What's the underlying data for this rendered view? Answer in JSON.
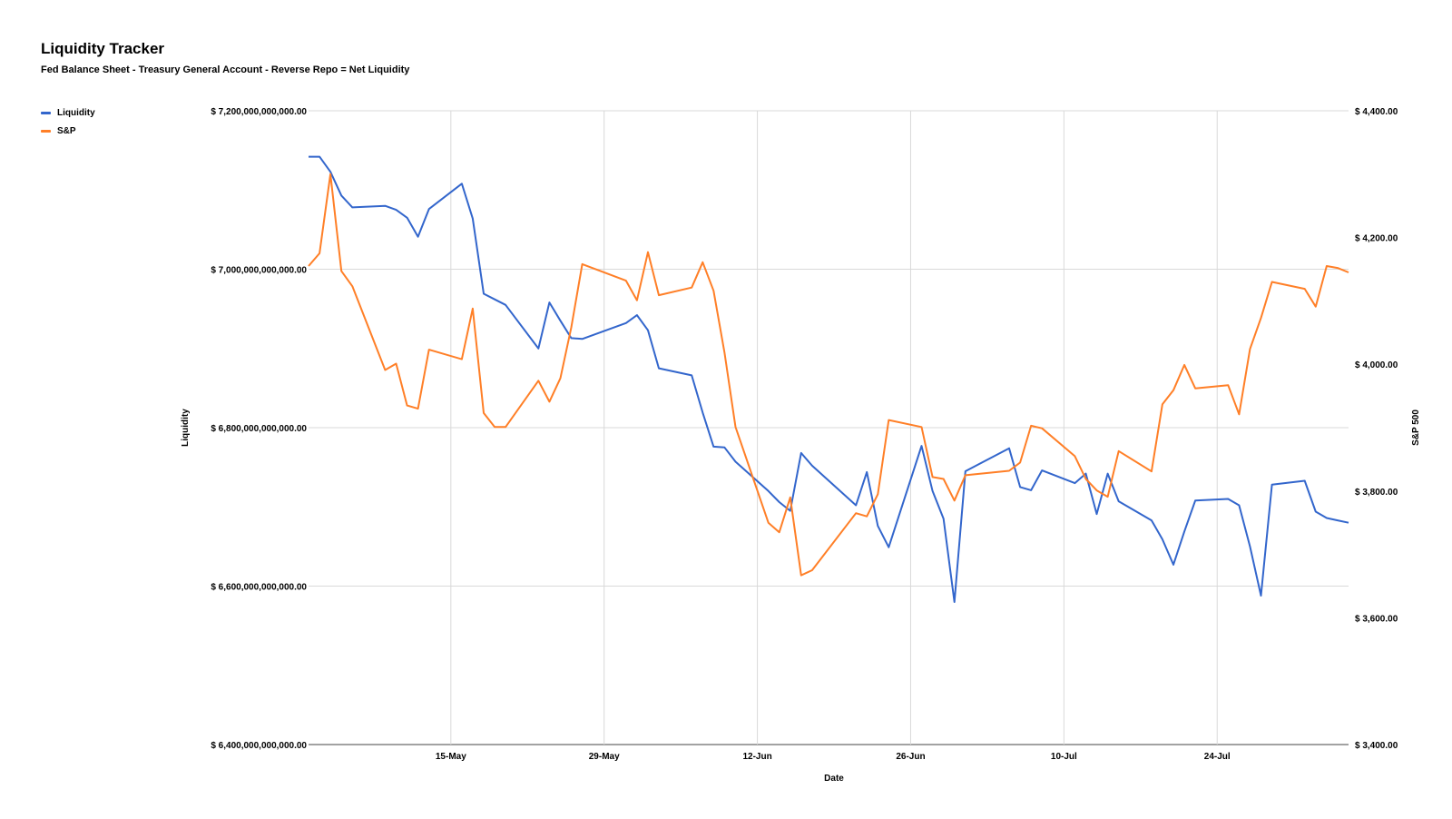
{
  "chart_data": {
    "type": "line",
    "title": "Liquidity Tracker",
    "subtitle": "Fed Balance Sheet - Treasury General Account - Reverse Repo = Net Liquidity",
    "xlabel": "Date",
    "ylabel": "Liquidity",
    "y2label": "S&P 500",
    "x_ticks": [
      "15-May",
      "29-May",
      "12-Jun",
      "26-Jun",
      "10-Jul",
      "24-Jul"
    ],
    "y_ticks": [
      "$ 6,400,000,000,000.00",
      "$ 6,600,000,000,000.00",
      "$ 6,800,000,000,000.00",
      "$ 7,000,000,000,000.00",
      "$ 7,200,000,000,000.00"
    ],
    "y2_ticks": [
      "$ 3,400.00",
      "$ 3,600.00",
      "$ 3,800.00",
      "$ 4,000.00",
      "$ 4,200.00",
      "$ 4,400.00"
    ],
    "ylim": [
      6400000000000,
      7200000000000
    ],
    "y2lim": [
      3400,
      4400
    ],
    "grid": true,
    "legend_position": "top-left",
    "series": [
      {
        "name": "Liquidity",
        "color": "#3366cc",
        "axis": "left",
        "x": [
          "2022-05-02",
          "2022-05-03",
          "2022-05-04",
          "2022-05-05",
          "2022-05-06",
          "2022-05-09",
          "2022-05-10",
          "2022-05-11",
          "2022-05-12",
          "2022-05-13",
          "2022-05-16",
          "2022-05-17",
          "2022-05-18",
          "2022-05-19",
          "2022-05-20",
          "2022-05-23",
          "2022-05-24",
          "2022-05-25",
          "2022-05-26",
          "2022-05-27",
          "2022-05-31",
          "2022-06-01",
          "2022-06-02",
          "2022-06-03",
          "2022-06-06",
          "2022-06-07",
          "2022-06-08",
          "2022-06-09",
          "2022-06-10",
          "2022-06-13",
          "2022-06-14",
          "2022-06-15",
          "2022-06-16",
          "2022-06-17",
          "2022-06-21",
          "2022-06-22",
          "2022-06-23",
          "2022-06-24",
          "2022-06-27",
          "2022-06-28",
          "2022-06-29",
          "2022-06-30",
          "2022-07-01",
          "2022-07-05",
          "2022-07-06",
          "2022-07-07",
          "2022-07-08",
          "2022-07-11",
          "2022-07-12",
          "2022-07-13",
          "2022-07-14",
          "2022-07-15",
          "2022-07-18",
          "2022-07-19",
          "2022-07-20",
          "2022-07-21",
          "2022-07-22",
          "2022-07-25",
          "2022-07-26",
          "2022-07-27",
          "2022-07-28",
          "2022-07-29",
          "2022-08-01",
          "2022-08-02",
          "2022-08-03",
          "2022-08-04",
          "2022-08-05"
        ],
        "values": [
          7142000000000.0,
          7142000000000.0,
          7123000000000.0,
          7093000000000.0,
          7078000000000.0,
          7080000000000.0,
          7075000000000.0,
          7065000000000.0,
          7041000000000.0,
          7076000000000.0,
          7108000000000.0,
          7064000000000.0,
          6969000000000.0,
          6962000000000.0,
          6955000000000.0,
          6900000000000.0,
          6958000000000.0,
          6935000000000.0,
          6913000000000.0,
          6912000000000.0,
          6932000000000.0,
          6942000000000.0,
          6923000000000.0,
          6875000000000.0,
          6866000000000.0,
          6819000000000.0,
          6776000000000.0,
          6775000000000.0,
          6757000000000.0,
          6720000000000.0,
          6706000000000.0,
          6695000000000.0,
          6768000000000.0,
          6752000000000.0,
          6702000000000.0,
          6744000000000.0,
          6676000000000.0,
          6649000000000.0,
          6777000000000.0,
          6720000000000.0,
          6685000000000.0,
          6580000000000.0,
          6745000000000.0,
          6774000000000.0,
          6725000000000.0,
          6721000000000.0,
          6746000000000.0,
          6730000000000.0,
          6742000000000.0,
          6691000000000.0,
          6742000000000.0,
          6707000000000.0,
          6683000000000.0,
          6659000000000.0,
          6627000000000.0,
          6669000000000.0,
          6708000000000.0,
          6710000000000.0,
          6702000000000.0,
          6650000000000.0,
          6588000000000.0,
          6728000000000.0,
          6733000000000.0,
          6694000000000.0,
          6686000000000.0,
          6683000000000.0,
          6680000000000.0
        ]
      },
      {
        "name": "S&P",
        "color": "#ff7f27",
        "axis": "right",
        "x": [
          "2022-05-02",
          "2022-05-03",
          "2022-05-04",
          "2022-05-05",
          "2022-05-06",
          "2022-05-09",
          "2022-05-10",
          "2022-05-11",
          "2022-05-12",
          "2022-05-13",
          "2022-05-16",
          "2022-05-17",
          "2022-05-18",
          "2022-05-19",
          "2022-05-20",
          "2022-05-23",
          "2022-05-24",
          "2022-05-25",
          "2022-05-26",
          "2022-05-27",
          "2022-05-31",
          "2022-06-01",
          "2022-06-02",
          "2022-06-03",
          "2022-06-06",
          "2022-06-07",
          "2022-06-08",
          "2022-06-09",
          "2022-06-10",
          "2022-06-13",
          "2022-06-14",
          "2022-06-15",
          "2022-06-16",
          "2022-06-17",
          "2022-06-21",
          "2022-06-22",
          "2022-06-23",
          "2022-06-24",
          "2022-06-27",
          "2022-06-28",
          "2022-06-29",
          "2022-06-30",
          "2022-07-01",
          "2022-07-05",
          "2022-07-06",
          "2022-07-07",
          "2022-07-08",
          "2022-07-11",
          "2022-07-12",
          "2022-07-13",
          "2022-07-14",
          "2022-07-15",
          "2022-07-18",
          "2022-07-19",
          "2022-07-20",
          "2022-07-21",
          "2022-07-22",
          "2022-07-25",
          "2022-07-26",
          "2022-07-27",
          "2022-07-28",
          "2022-07-29",
          "2022-08-01",
          "2022-08-02",
          "2022-08-03",
          "2022-08-04",
          "2022-08-05"
        ],
        "values": [
          4155,
          4175,
          4300,
          4147,
          4123,
          3991,
          4001,
          3935,
          3930,
          4023,
          4008,
          4088,
          3923,
          3901,
          3901,
          3974,
          3941,
          3978,
          4058,
          4158,
          4132,
          4101,
          4177,
          4109,
          4121,
          4161,
          4116,
          4018,
          3901,
          3750,
          3735,
          3790,
          3667,
          3675,
          3765,
          3760,
          3795,
          3912,
          3901,
          3822,
          3819,
          3785,
          3825,
          3832,
          3845,
          3903,
          3899,
          3855,
          3819,
          3801,
          3791,
          3863,
          3831,
          3937,
          3959,
          3999,
          3962,
          3967,
          3921,
          4024,
          4073,
          4130,
          4119,
          4091,
          4155,
          4152,
          4145
        ]
      }
    ]
  }
}
